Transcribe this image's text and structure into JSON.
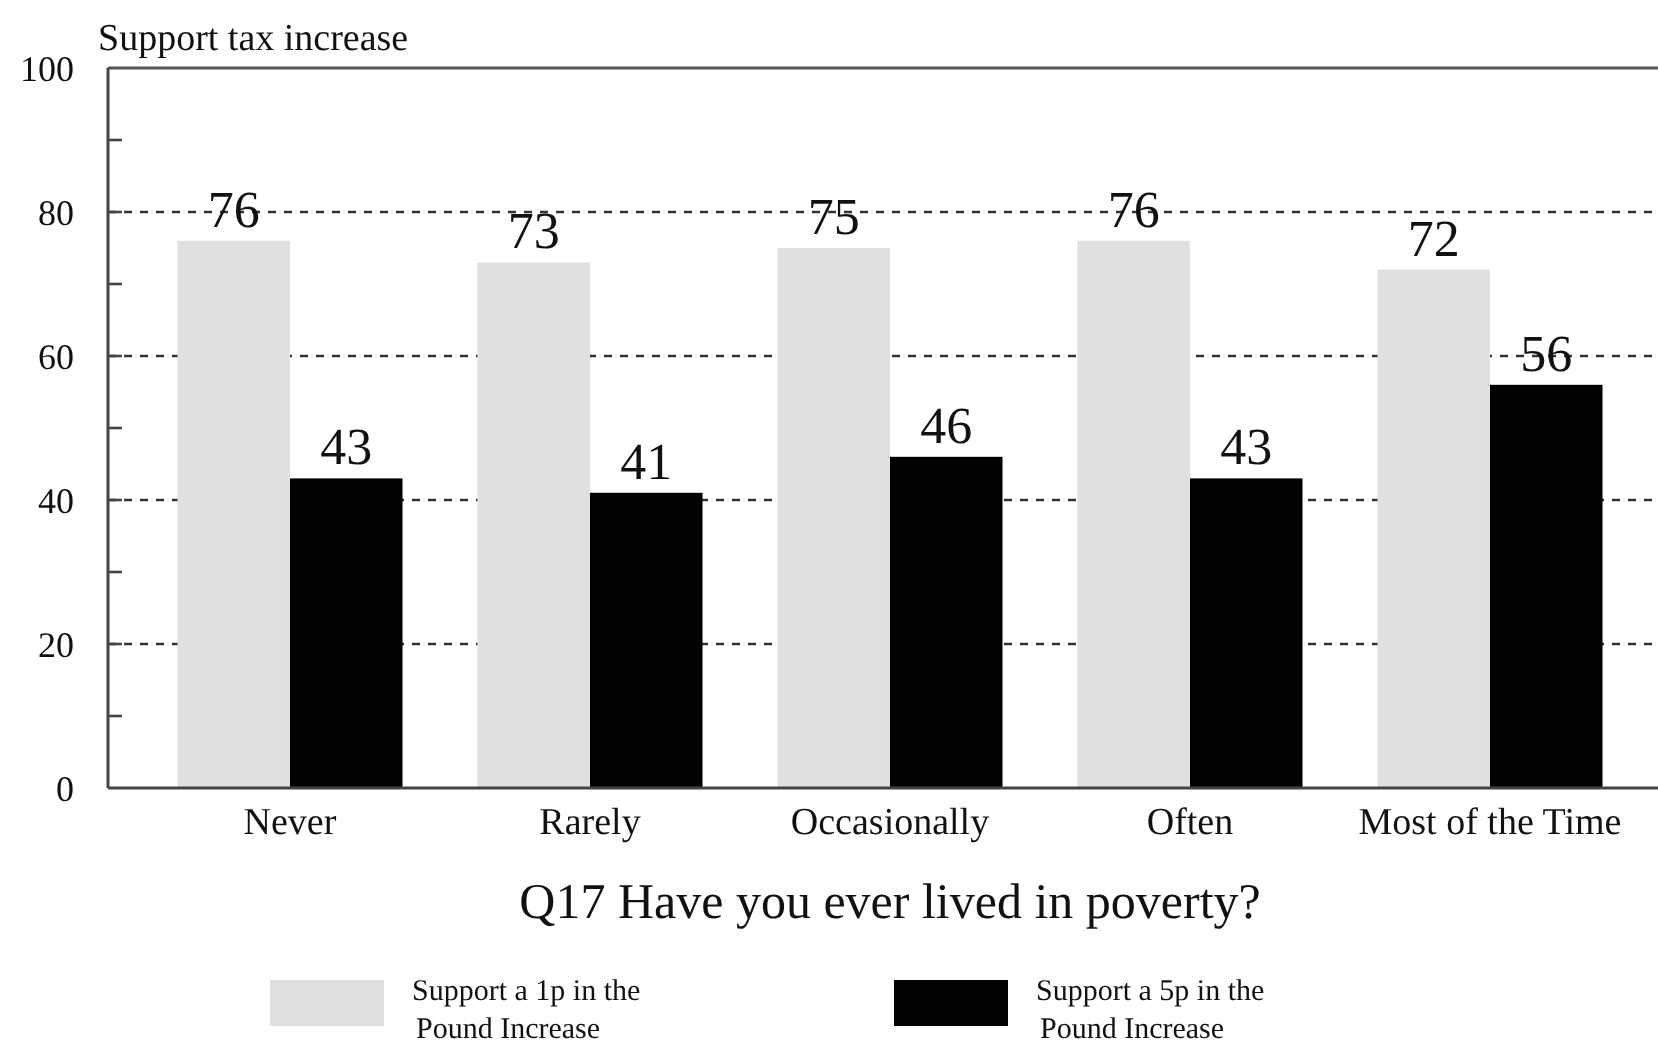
{
  "chart_data": {
    "type": "bar",
    "ylabel": "Support tax increase",
    "xlabel": "Q17 Have you ever lived in poverty?",
    "categories": [
      "Never",
      "Rarely",
      "Occasionally",
      "Often",
      "Most of the Time"
    ],
    "series": [
      {
        "name": "Support a 1p in the Pound Increase",
        "color": "#e0e0e0",
        "values": [
          76,
          73,
          75,
          76,
          72
        ]
      },
      {
        "name": "Support a 5p in the Pound Increase",
        "color": "#000000",
        "values": [
          43,
          41,
          46,
          43,
          56
        ]
      }
    ],
    "ylim": [
      0,
      100
    ],
    "yticks": [
      0,
      {
        "value": 10,
        "label": null
      },
      20,
      {
        "value": 30,
        "label": null
      },
      40,
      {
        "value": 50,
        "label": null
      },
      60,
      {
        "value": 70,
        "label": null
      },
      80,
      {
        "value": 90,
        "label": null
      },
      100
    ],
    "grid": "y",
    "legend": "bottom",
    "data_labels": true
  }
}
